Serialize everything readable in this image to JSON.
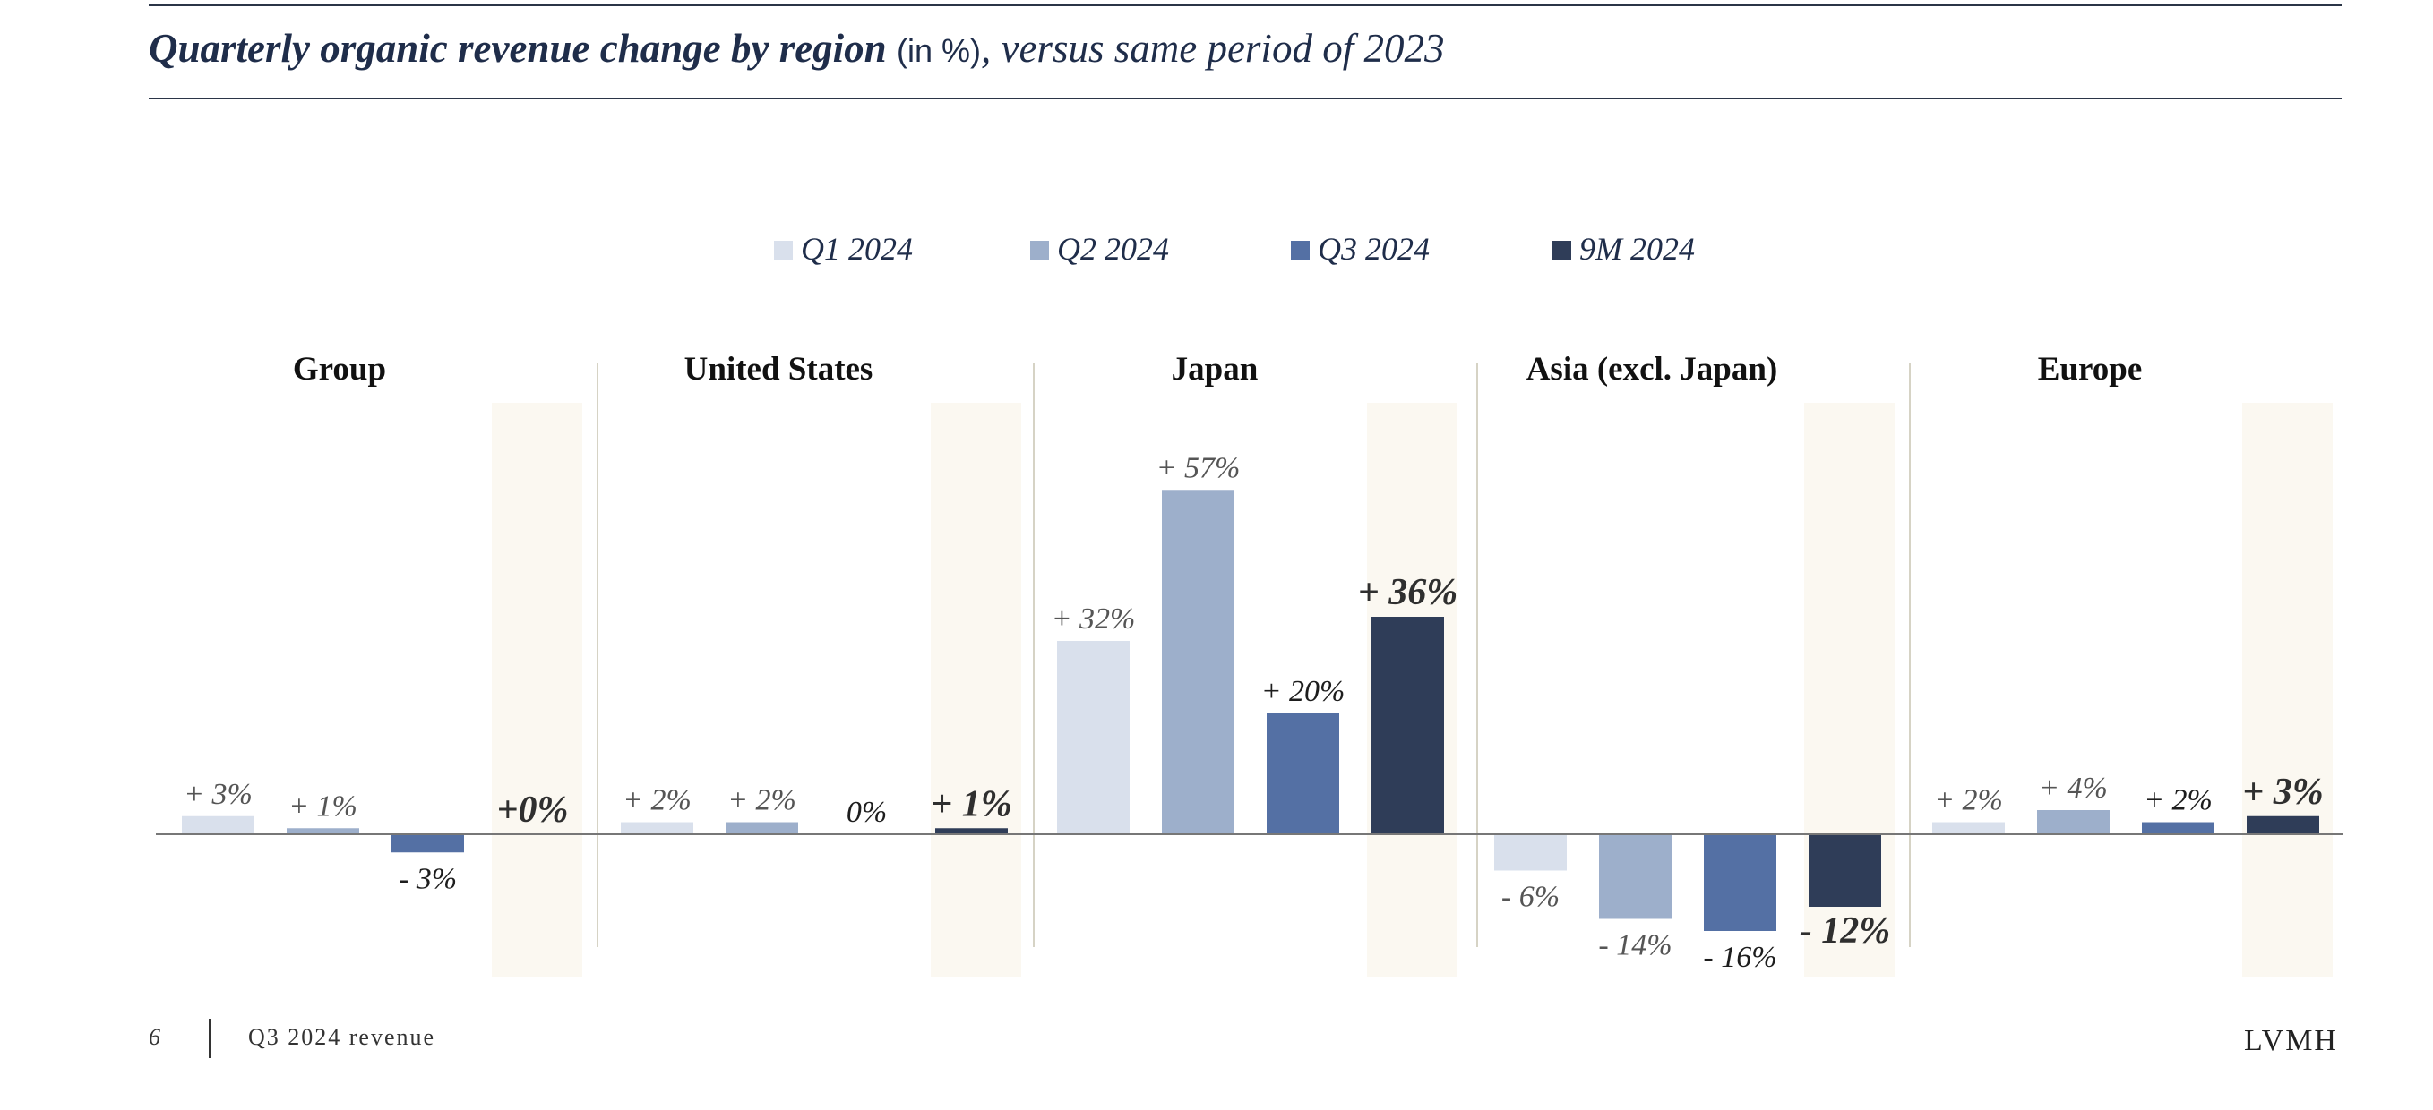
{
  "header": {
    "title_main": "Quarterly organic revenue change by region",
    "title_unit": "(in %)",
    "title_sub": ", versus same period of 2023"
  },
  "chart_data": {
    "type": "bar",
    "categories": [
      "Group",
      "United States",
      "Japan",
      "Asia (excl. Japan)",
      "Europe"
    ],
    "series": [
      {
        "name": "Q1 2024",
        "color": "#d9e0ec",
        "values": [
          3,
          2,
          32,
          -6,
          2
        ],
        "labels": [
          "+ 3%",
          "+ 2%",
          "+ 32%",
          "- 6%",
          "+ 2%"
        ]
      },
      {
        "name": "Q2 2024",
        "color": "#9dafcb",
        "values": [
          1,
          2,
          57,
          -14,
          4
        ],
        "labels": [
          "+ 1%",
          "+ 2%",
          "+ 57%",
          "- 14%",
          "+ 4%"
        ]
      },
      {
        "name": "Q3 2024",
        "color": "#5470a4",
        "values": [
          -3,
          0,
          20,
          -16,
          2
        ],
        "labels": [
          "- 3%",
          "0%",
          "+ 20%",
          "- 16%",
          "+ 2%"
        ]
      },
      {
        "name": "9M 2024",
        "color": "#2f3d58",
        "values": [
          0,
          1,
          36,
          -12,
          3
        ],
        "labels": [
          "+0%",
          "+ 1%",
          "+ 36%",
          "- 12%",
          "+ 3%"
        ],
        "highlighted": true
      }
    ],
    "legend_position": "top-center",
    "highlight_color": "#fbf8f1",
    "grid": false
  },
  "footer": {
    "page_number": "6",
    "document": "Q3 2024 revenue",
    "brand": "LVMH"
  }
}
